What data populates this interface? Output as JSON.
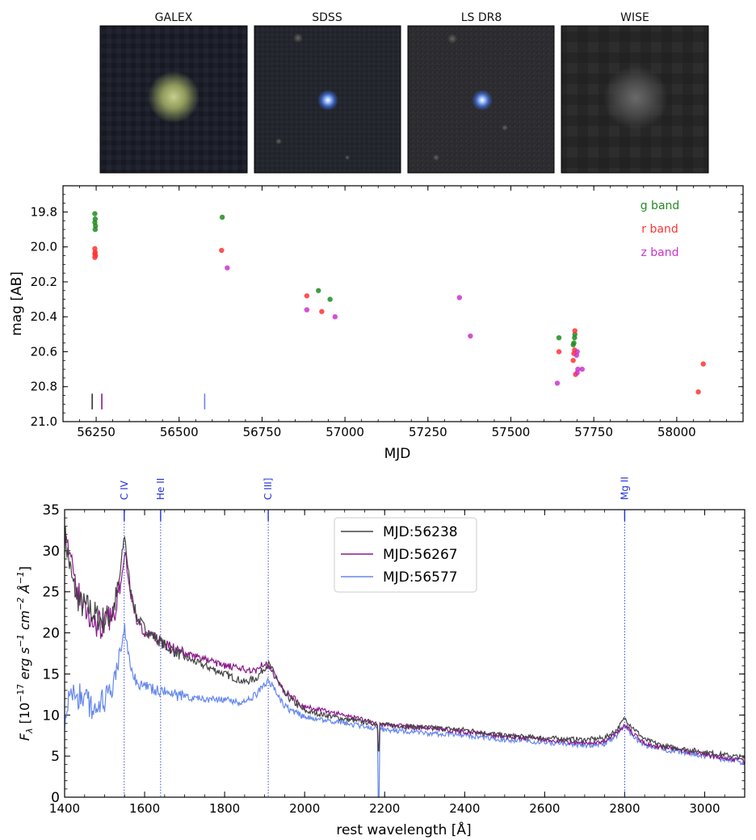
{
  "images": {
    "panels": [
      {
        "label": "GALEX"
      },
      {
        "label": "SDSS"
      },
      {
        "label": "LS DR8"
      },
      {
        "label": "WISE"
      }
    ]
  },
  "chart_data": [
    {
      "type": "scatter",
      "xlabel": "MJD",
      "ylabel": "mag [AB]",
      "xlim": [
        56150,
        58200
      ],
      "ylim": [
        21.0,
        19.65
      ],
      "y_inverted": true,
      "xticks": [
        56250,
        56500,
        56750,
        57000,
        57250,
        57500,
        57750,
        58000
      ],
      "xtick_labels": [
        "56250",
        "56500",
        "56750",
        "57000",
        "57250",
        "57500",
        "57750",
        "58000"
      ],
      "yticks": [
        19.8,
        20.0,
        20.2,
        20.4,
        20.6,
        20.8,
        21.0
      ],
      "ytick_labels": [
        "19.8",
        "20.0",
        "20.2",
        "20.4",
        "20.6",
        "20.8",
        "21.0"
      ],
      "legend_position": "top-right",
      "series": [
        {
          "name": "g band",
          "color": "#228b22",
          "x": [
            56246,
            56247,
            56246,
            56248,
            56247,
            56630,
            56920,
            56955,
            57645,
            57688,
            57690,
            57692,
            57693
          ],
          "y": [
            19.81,
            19.84,
            19.86,
            19.88,
            19.9,
            19.83,
            20.25,
            20.3,
            20.52,
            20.56,
            20.55,
            20.52,
            20.5
          ]
        },
        {
          "name": "r band",
          "color": "#ff3333",
          "x": [
            56246,
            56247,
            56246,
            56248,
            56246,
            56628,
            56885,
            56930,
            57645,
            57688,
            57690,
            57692,
            57693,
            57695,
            58065,
            58080
          ],
          "y": [
            20.01,
            20.03,
            20.04,
            20.05,
            20.06,
            20.02,
            20.28,
            20.37,
            20.6,
            20.65,
            20.61,
            20.59,
            20.48,
            20.73,
            20.83,
            20.67
          ],
          "dotted_marks": []
        },
        {
          "name": "z band",
          "color": "#cc33cc",
          "x": [
            56645,
            56885,
            56970,
            57345,
            57378,
            57640,
            57698,
            57700,
            57702,
            57700,
            57715
          ],
          "y": [
            20.12,
            20.36,
            20.4,
            20.29,
            20.51,
            20.78,
            20.62,
            20.6,
            20.7,
            20.72,
            20.7
          ]
        }
      ],
      "epoch_markers": [
        {
          "mjd": 56238,
          "color": "#333333"
        },
        {
          "mjd": 56267,
          "color": "#8b1a8b"
        },
        {
          "mjd": 56577,
          "color": "#6688ee"
        }
      ]
    },
    {
      "type": "line",
      "xlabel": "rest wavelength [Å]",
      "ylabel": "F_λ [10^-17 erg s^-1 cm^-2 Å^-1]",
      "xlim": [
        1400,
        3100
      ],
      "ylim": [
        0,
        35
      ],
      "xticks": [
        1400,
        1600,
        1800,
        2000,
        2200,
        2400,
        2600,
        2800,
        3000
      ],
      "xtick_labels": [
        "1400",
        "1600",
        "1800",
        "2000",
        "2200",
        "2400",
        "2600",
        "2800",
        "3000"
      ],
      "yticks": [
        0,
        5,
        10,
        15,
        20,
        25,
        30,
        35
      ],
      "ytick_labels": [
        "0",
        "5",
        "10",
        "15",
        "20",
        "25",
        "30",
        "35"
      ],
      "legend_position": "top-center",
      "emission_lines": [
        {
          "name": "C IV",
          "wavelength": 1549
        },
        {
          "name": "He II",
          "wavelength": 1640
        },
        {
          "name": "C III]",
          "wavelength": 1909
        },
        {
          "name": "Mg II",
          "wavelength": 2800
        }
      ],
      "series": [
        {
          "name": "MJD:56238",
          "color": "#444444",
          "x": [
            1400,
            1420,
            1440,
            1460,
            1480,
            1500,
            1520,
            1535,
            1545,
            1550,
            1556,
            1565,
            1580,
            1600,
            1625,
            1650,
            1700,
            1750,
            1800,
            1850,
            1880,
            1900,
            1910,
            1925,
            1950,
            2000,
            2100,
            2200,
            2300,
            2400,
            2500,
            2600,
            2700,
            2750,
            2780,
            2800,
            2820,
            2850,
            2900,
            3000,
            3100
          ],
          "y": [
            32,
            26,
            23.5,
            23,
            22,
            21.5,
            22.5,
            25.5,
            30,
            32,
            29,
            25,
            22,
            20.5,
            19.5,
            18.5,
            17,
            16,
            15,
            14,
            14.5,
            15.8,
            16.2,
            15,
            12.5,
            10.5,
            9.5,
            8.8,
            8.5,
            8.2,
            7.5,
            7.2,
            7,
            7.2,
            8.2,
            9.6,
            8.5,
            7,
            6.2,
            5.5,
            4.8
          ]
        },
        {
          "name": "MJD:56267",
          "color": "#8b1a8b",
          "x": [
            1400,
            1420,
            1440,
            1460,
            1480,
            1500,
            1520,
            1535,
            1545,
            1550,
            1556,
            1565,
            1580,
            1600,
            1625,
            1650,
            1700,
            1750,
            1800,
            1850,
            1880,
            1900,
            1910,
            1925,
            1950,
            2000,
            2100,
            2200,
            2300,
            2400,
            2500,
            2600,
            2700,
            2750,
            2780,
            2800,
            2820,
            2850,
            2900,
            3000,
            3100
          ],
          "y": [
            34,
            27,
            24,
            22,
            21,
            21,
            22,
            25,
            28,
            30,
            28,
            25,
            21.5,
            20,
            19.5,
            18.5,
            17.5,
            16.8,
            16,
            15.5,
            15.5,
            16.5,
            16,
            14.8,
            12.8,
            11,
            10,
            8.8,
            8.4,
            8,
            7.4,
            7,
            6.6,
            6.8,
            7.8,
            8.8,
            7.8,
            6.6,
            6,
            5.2,
            4.4
          ]
        },
        {
          "name": "MJD:56577",
          "color": "#6688ee",
          "x": [
            1400,
            1420,
            1440,
            1460,
            1480,
            1500,
            1520,
            1535,
            1545,
            1550,
            1556,
            1565,
            1580,
            1600,
            1625,
            1650,
            1700,
            1750,
            1800,
            1850,
            1880,
            1900,
            1910,
            1925,
            1950,
            2000,
            2100,
            2200,
            2300,
            2400,
            2500,
            2600,
            2700,
            2750,
            2780,
            2800,
            2820,
            2850,
            2900,
            3000,
            3100
          ],
          "y": [
            10,
            13,
            12,
            11.5,
            11,
            11.5,
            13,
            16,
            19,
            20.5,
            18.5,
            16,
            14,
            13.5,
            13,
            12.8,
            12.2,
            12,
            11.8,
            11.5,
            12.5,
            13.8,
            14.2,
            13,
            11,
            9.8,
            9,
            8.2,
            7.8,
            7.5,
            7,
            6.7,
            6.3,
            6.5,
            7.5,
            8.8,
            7.4,
            6.3,
            5.8,
            5,
            4.2
          ]
        }
      ],
      "absorption_feature": {
        "wavelength": 2185
      }
    }
  ]
}
